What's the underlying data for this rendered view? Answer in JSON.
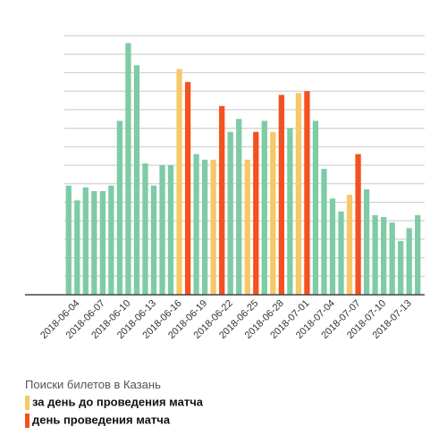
{
  "chart_data": {
    "type": "bar",
    "categories": [
      null,
      "2018-06-04",
      null,
      null,
      "2018-06-07",
      null,
      null,
      "2018-06-10",
      null,
      null,
      "2018-06-13",
      null,
      null,
      "2018-06-16",
      null,
      null,
      "2018-06-19",
      null,
      null,
      "2018-06-22",
      null,
      null,
      "2018-06-25",
      null,
      null,
      "2018-06-28",
      null,
      null,
      "2018-07-01",
      null,
      null,
      "2018-07-04",
      null,
      null,
      "2018-07-07",
      null,
      null,
      "2018-07-10",
      null,
      null,
      "2018-07-13",
      null
    ],
    "values": [
      5.9,
      5.1,
      5.8,
      5.6,
      5.6,
      5.9,
      9.4,
      13.6,
      12.4,
      7.1,
      5.9,
      7.0,
      7.0,
      12.2,
      11.5,
      7.6,
      7.3,
      7.3,
      10.2,
      8.8,
      9.5,
      7.3,
      8.8,
      9.4,
      8.8,
      10.8,
      9.0,
      10.9,
      11.0,
      9.4,
      6.8,
      5.2,
      4.5,
      5.4,
      7.6,
      5.7,
      4.3,
      4.2,
      3.9,
      2.9,
      3.6,
      4.3
    ],
    "colors": [
      "#7ecba5",
      "#7ecba5",
      "#7ecba5",
      "#7ecba5",
      "#7ecba5",
      "#7ecba5",
      "#7ecba5",
      "#7ecba5",
      "#7ecba5",
      "#7ecba5",
      "#7ecba5",
      "#7ecba5",
      "#7ecba5",
      "#f6c866",
      "#f4511e",
      "#7ecba5",
      "#7ecba5",
      "#f6c866",
      "#f4511e",
      "#7ecba5",
      "#7ecba5",
      "#f6c866",
      "#f4511e",
      "#7ecba5",
      "#f6c866",
      "#f4511e",
      "#7ecba5",
      "#f6c866",
      "#f4511e",
      "#7ecba5",
      "#7ecba5",
      "#7ecba5",
      "#7ecba5",
      "#f6c866",
      "#f4511e",
      "#7ecba5",
      "#7ecba5",
      "#7ecba5",
      "#7ecba5",
      "#7ecba5",
      "#7ecba5",
      "#7ecba5"
    ],
    "ylim": [
      0,
      14
    ],
    "yticks": [
      1,
      2,
      3,
      4,
      5,
      6,
      7,
      8,
      9,
      10,
      11,
      12,
      13,
      14
    ],
    "grid": true,
    "legend_title": "Поиски билетов в Казань",
    "legend": [
      {
        "name": "за день до проведения матча",
        "color": "#f6c866"
      },
      {
        "name": "день проведения матча",
        "color": "#f4511e"
      }
    ]
  }
}
